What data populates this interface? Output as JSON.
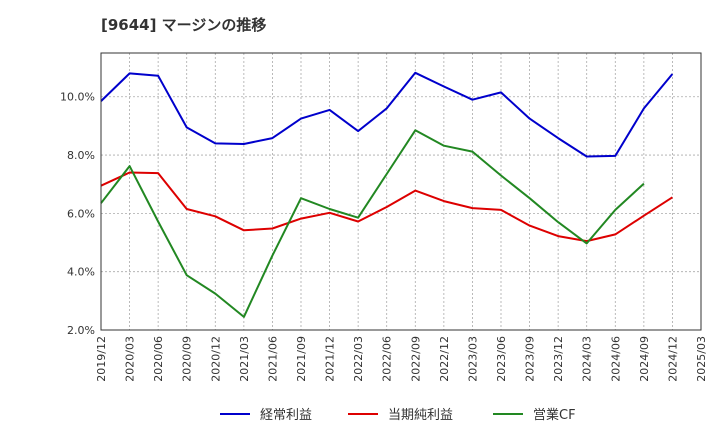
{
  "chart_data": {
    "type": "line",
    "title": "[9644]  マージンの推移",
    "xlabel": "",
    "ylabel": "",
    "x": [
      "2019/12",
      "2020/03",
      "2020/06",
      "2020/09",
      "2020/12",
      "2021/03",
      "2021/06",
      "2021/09",
      "2021/12",
      "2022/03",
      "2022/06",
      "2022/09",
      "2022/12",
      "2023/03",
      "2023/06",
      "2023/09",
      "2023/12",
      "2024/03",
      "2024/06",
      "2024/09",
      "2024/12",
      "2025/03"
    ],
    "ylim": [
      2.0,
      11.5
    ],
    "yticks": [
      2.0,
      4.0,
      6.0,
      8.0,
      10.0
    ],
    "ytick_labels": [
      "2.0%",
      "4.0%",
      "6.0%",
      "8.0%",
      "10.0%"
    ],
    "grid": true,
    "legend_position": "bottom",
    "series": [
      {
        "name": "経常利益",
        "color": "#0000cc",
        "values": [
          9.85,
          10.8,
          10.72,
          8.95,
          8.4,
          8.38,
          8.58,
          9.25,
          9.55,
          8.82,
          9.6,
          10.82,
          10.35,
          9.9,
          10.15,
          9.25,
          8.58,
          7.95,
          7.97,
          9.6,
          10.78,
          null
        ]
      },
      {
        "name": "当期純利益",
        "color": "#dd0000",
        "values": [
          6.95,
          7.4,
          7.38,
          6.15,
          5.9,
          5.42,
          5.48,
          5.82,
          6.02,
          5.72,
          6.22,
          6.78,
          6.42,
          6.18,
          6.12,
          5.58,
          5.22,
          5.05,
          5.28,
          5.92,
          6.55,
          null
        ]
      },
      {
        "name": "営業CF",
        "color": "#228822",
        "values": [
          6.35,
          7.62,
          5.72,
          3.88,
          3.25,
          2.45,
          4.55,
          6.52,
          6.15,
          5.85,
          7.35,
          8.85,
          8.32,
          8.12,
          7.3,
          6.52,
          5.7,
          4.97,
          6.12,
          7.02,
          null,
          null
        ]
      }
    ]
  }
}
